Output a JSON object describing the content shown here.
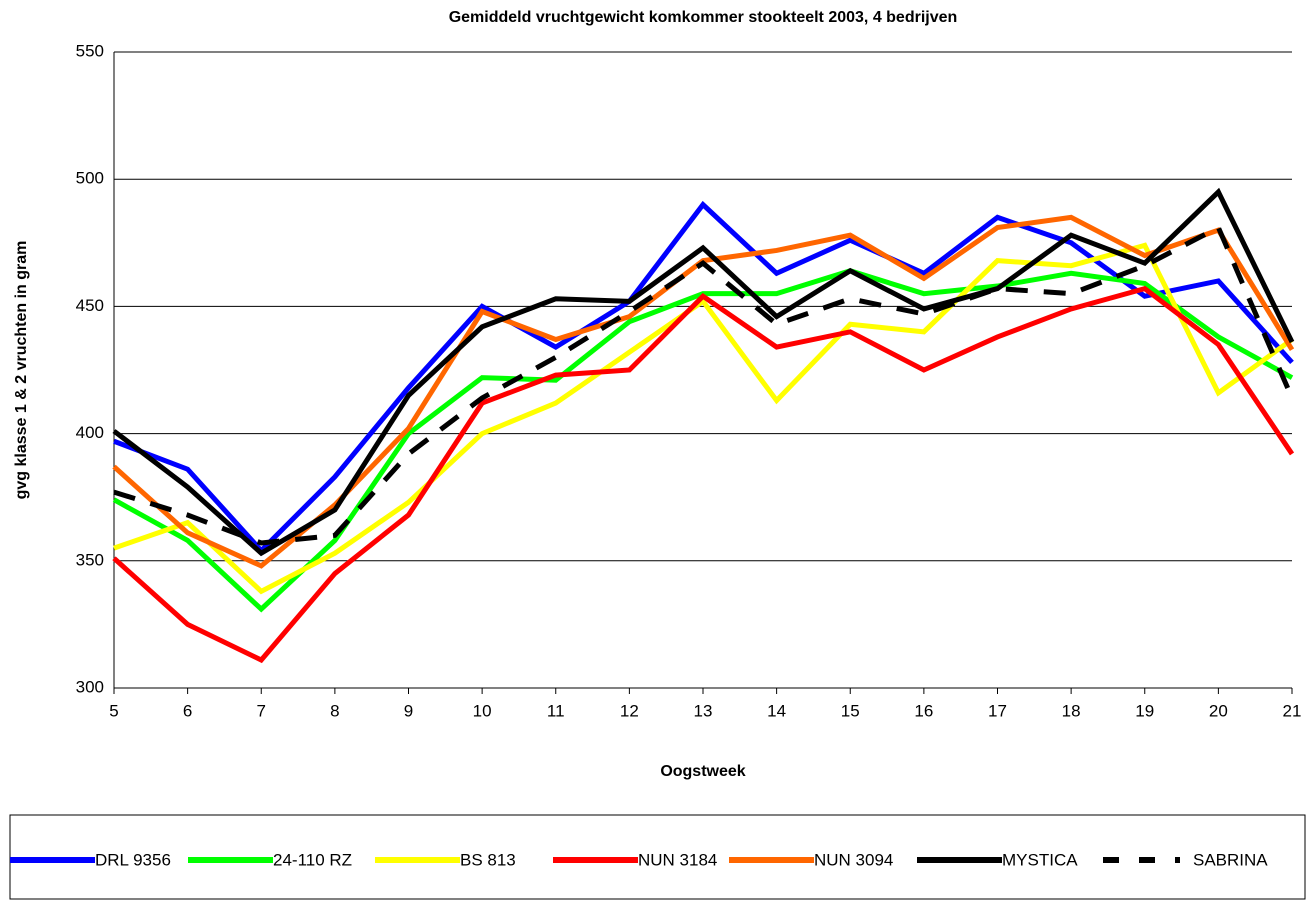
{
  "chart_data": {
    "type": "line",
    "title": "Gemiddeld vruchtgewicht komkommer stookteelt 2003,  4 bedrijven",
    "x_label": "Oogstweek",
    "y_label": "gvg klasse 1 & 2 vruchten in gram",
    "x": [
      5,
      6,
      7,
      8,
      9,
      10,
      11,
      12,
      13,
      14,
      15,
      16,
      17,
      18,
      19,
      20,
      21
    ],
    "xlim": [
      5,
      21
    ],
    "xticks": [
      5,
      6,
      7,
      8,
      9,
      10,
      11,
      12,
      13,
      14,
      15,
      16,
      17,
      18,
      19,
      20,
      21
    ],
    "ylim": [
      300,
      550
    ],
    "yticks": [
      300,
      350,
      400,
      450,
      500,
      550
    ],
    "grid": true,
    "legend": "bottom",
    "series": [
      {
        "name": "DRL 9356",
        "color": "#0000ff",
        "values": [
          397,
          386,
          354,
          383,
          418,
          450,
          434,
          452,
          490,
          463,
          476,
          463,
          485,
          475,
          454,
          460,
          428
        ]
      },
      {
        "name": "24-110 RZ",
        "color": "#00ff00",
        "values": [
          374,
          358,
          331,
          358,
          400,
          422,
          421,
          444,
          455,
          455,
          464,
          455,
          458,
          463,
          459,
          438,
          422
        ]
      },
      {
        "name": "BS 813",
        "color": "#ffff00",
        "values": [
          355,
          365,
          338,
          353,
          373,
          400,
          412,
          432,
          452,
          413,
          443,
          440,
          468,
          466,
          474,
          416,
          437
        ]
      },
      {
        "name": "NUN 3184",
        "color": "#ff0000",
        "values": [
          351,
          325,
          311,
          345,
          368,
          412,
          423,
          425,
          454,
          434,
          440,
          425,
          438,
          449,
          457,
          435,
          392
        ]
      },
      {
        "name": "NUN 3094",
        "color": "#ff6600",
        "values": [
          387,
          361,
          348,
          372,
          402,
          448,
          437,
          446,
          468,
          472,
          478,
          461,
          481,
          485,
          470,
          480,
          433
        ]
      },
      {
        "name": "MYSTICA",
        "color": "#000000",
        "values": [
          401,
          379,
          353,
          370,
          415,
          442,
          453,
          452,
          473,
          446,
          464,
          449,
          457,
          478,
          467,
          495,
          436
        ]
      },
      {
        "name": "SABRINA",
        "color": "#000000",
        "line_style": "dashed",
        "values": [
          377,
          368,
          357,
          360,
          392,
          414,
          430,
          448,
          467,
          443,
          453,
          447,
          457,
          455,
          466,
          481,
          414
        ]
      }
    ]
  }
}
